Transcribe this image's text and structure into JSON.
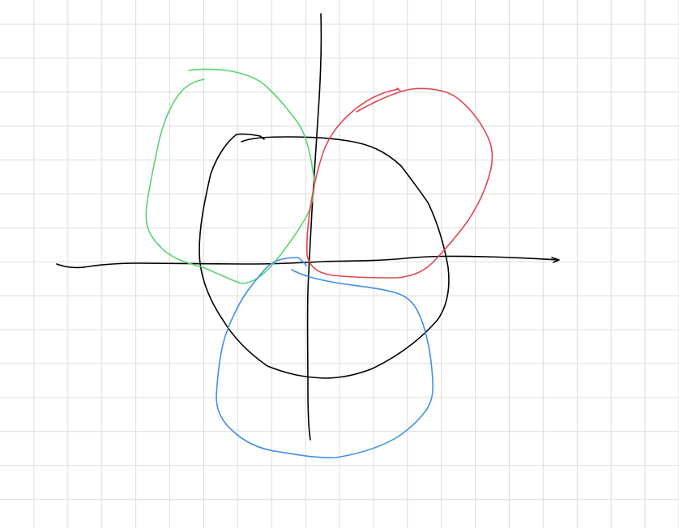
{
  "canvas": {
    "background": "#ffffff",
    "grid": true,
    "grid_color": "#dcdcdc"
  },
  "strokes": [
    {
      "name": "horizontal-axis-arrow",
      "kind": "axis",
      "color": "#000000"
    },
    {
      "name": "vertical-axis-line",
      "kind": "axis",
      "color": "#000000"
    },
    {
      "name": "black-center-loop",
      "kind": "loop",
      "color": "#000000"
    },
    {
      "name": "green-upper-left-loop",
      "kind": "loop",
      "color": "#5ad26e"
    },
    {
      "name": "red-upper-right-loop",
      "kind": "loop",
      "color": "#e0474f"
    },
    {
      "name": "blue-lower-loop",
      "kind": "loop",
      "color": "#3f8fe8"
    }
  ]
}
